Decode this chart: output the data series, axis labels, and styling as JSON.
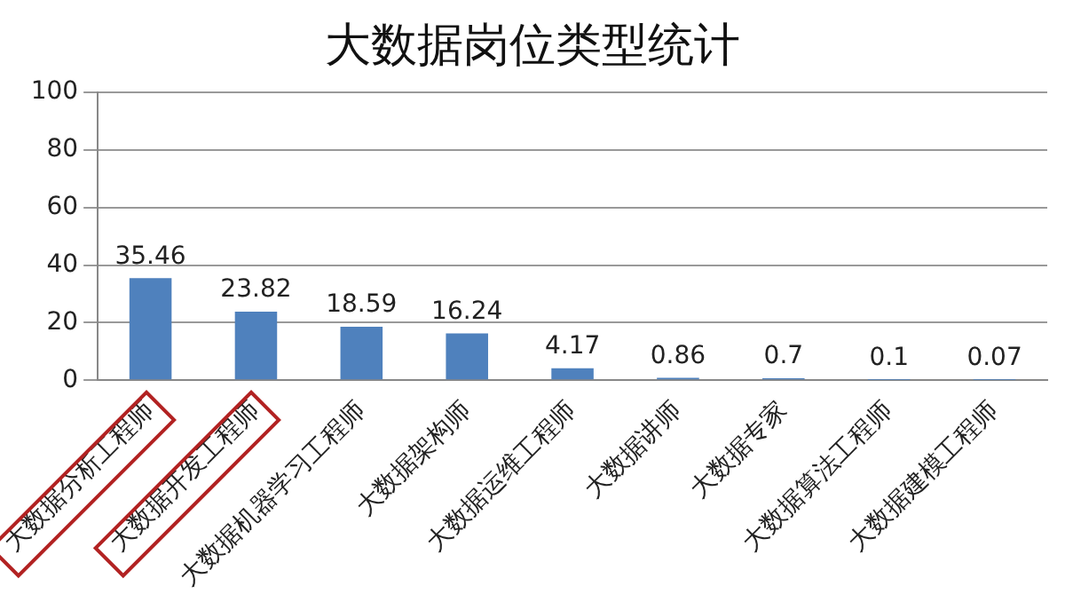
{
  "chart_data": {
    "type": "bar",
    "title": "大数据岗位类型统计",
    "categories": [
      "大数据分析工程师",
      "大数据开发工程师",
      "大数据机器学习工程师",
      "大数据架构师",
      "大数据运维工程师",
      "大数据讲师",
      "大数据专家",
      "大数据算法工程师",
      "大数据建模工程师"
    ],
    "values": [
      35.46,
      23.82,
      18.59,
      16.24,
      4.17,
      0.86,
      0.7,
      0.1,
      0.07
    ],
    "color": "#4f81bd",
    "ylim": [
      0,
      100
    ],
    "yticks": [
      0,
      20,
      40,
      60,
      80,
      100
    ],
    "grid": "y",
    "data_labels": true
  }
}
